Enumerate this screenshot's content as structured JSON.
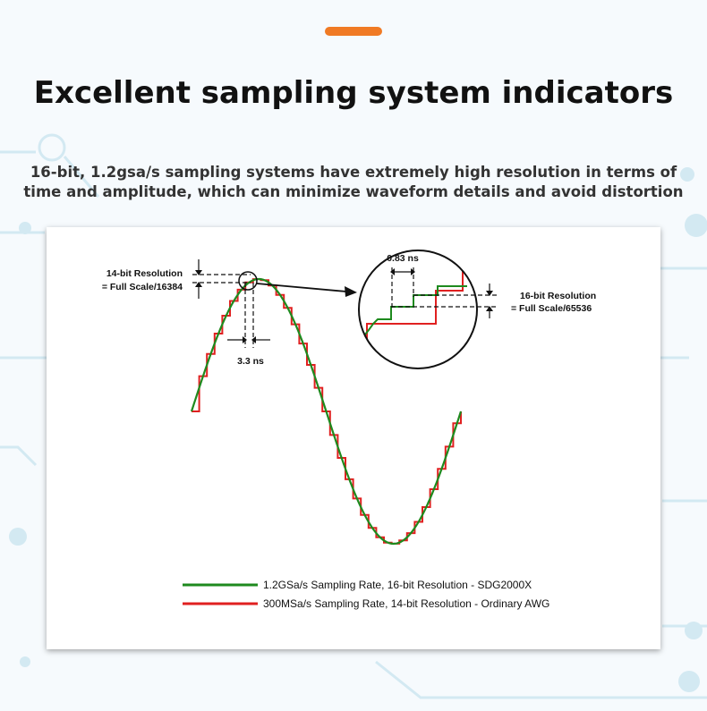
{
  "header": {
    "title": "Excellent sampling system indicators",
    "subtitle_line1": "16-bit, 1.2gsa/s sampling systems have extremely high resolution in terms of",
    "subtitle_line2": "time and amplitude, which can minimize waveform details and avoid distortion"
  },
  "diagram": {
    "res14_line1": "14-bit Resolution",
    "res14_line2": "= Full Scale/16384",
    "time14": "3.3 ns",
    "time16": "0.83 ns",
    "res16_line1": "16-bit Resolution",
    "res16_line2": "= Full Scale/65536",
    "legend": [
      {
        "label": "1.2GSa/s  Sampling Rate, 16-bit Resolution - SDG2000X",
        "color": "#1e8a1e"
      },
      {
        "label": "300MSa/s Sampling Rate, 14-bit Resolution - Ordinary AWG",
        "color": "#e02020"
      }
    ],
    "colors": {
      "smooth": "#1e8a1e",
      "stepped": "#e02020",
      "accent": "#f07a24"
    }
  }
}
